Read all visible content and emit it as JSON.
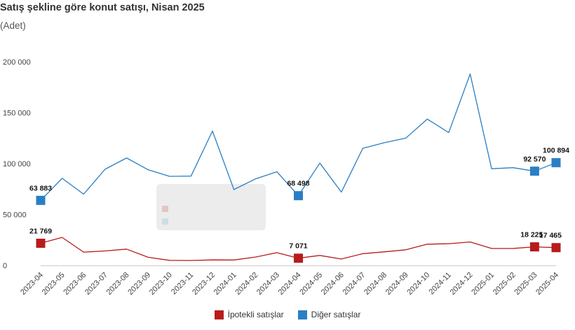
{
  "chart_data": {
    "type": "line",
    "title": "Satış şekline göre konut satışı, Nisan 2025",
    "subtitle": "(Adet)",
    "xlabel": "",
    "ylabel": "",
    "categories": [
      "2023-04",
      "2023-05",
      "2023-06",
      "2023-07",
      "2023-08",
      "2023-09",
      "2023-10",
      "2023-11",
      "2023-12",
      "2024-01",
      "2024-02",
      "2024-03",
      "2024-04",
      "2024-05",
      "2024-06",
      "2024-07",
      "2024-08",
      "2024-09",
      "2024-10",
      "2024-11",
      "2024-12",
      "2025-01",
      "2025-02",
      "2025-03",
      "2025-04"
    ],
    "ylim": [
      0,
      200000
    ],
    "yticks": [
      0,
      50000,
      100000,
      150000,
      200000
    ],
    "ytick_labels": [
      "0",
      "50 000",
      "100 000",
      "150 000",
      "200 000"
    ],
    "grid": false,
    "legend_position": "bottom",
    "series": [
      {
        "name": "İpotekli satışlar",
        "color": "#b71c1c",
        "values": [
          21769,
          27500,
          13000,
          14200,
          16000,
          8000,
          5000,
          4800,
          5400,
          5300,
          8200,
          12500,
          7071,
          9800,
          6300,
          11500,
          13300,
          15300,
          20800,
          21300,
          23000,
          16600,
          16700,
          18225,
          17465
        ],
        "labels": [
          {
            "index": 0,
            "text": "21 769"
          },
          {
            "index": 12,
            "text": "7 071"
          },
          {
            "index": 23,
            "text": "18 225"
          },
          {
            "index": 24,
            "text": "17 465"
          }
        ]
      },
      {
        "name": "Diğer satışlar",
        "color": "#2a7fc4",
        "values": [
          63883,
          85500,
          70000,
          94500,
          105500,
          94000,
          87500,
          87700,
          132000,
          74500,
          85000,
          92000,
          68498,
          100500,
          72000,
          115000,
          120500,
          125000,
          143700,
          130500,
          188000,
          95000,
          96000,
          92570,
          100894
        ],
        "labels": [
          {
            "index": 0,
            "text": "63 883"
          },
          {
            "index": 12,
            "text": "68 498"
          },
          {
            "index": 23,
            "text": "92 570"
          },
          {
            "index": 24,
            "text": "100 894"
          }
        ]
      }
    ]
  }
}
